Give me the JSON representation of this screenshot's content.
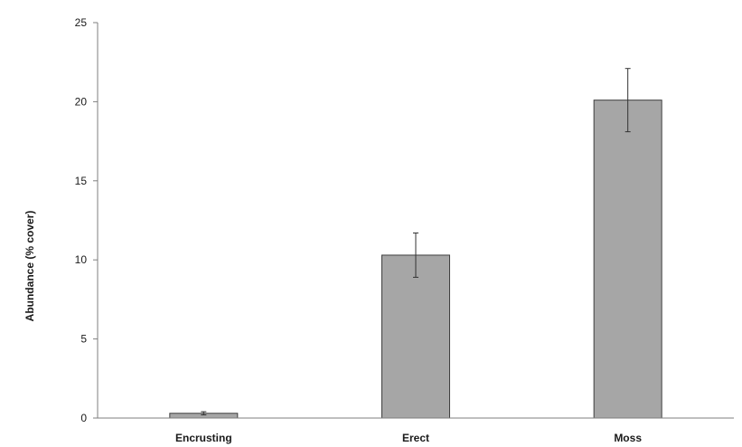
{
  "chart_data": {
    "type": "bar",
    "title": "",
    "xlabel": "",
    "ylabel": "Abundance (% cover)",
    "categories": [
      "Encrusting",
      "Erect",
      "Moss"
    ],
    "values": [
      0.3,
      10.3,
      20.1
    ],
    "error": [
      0.1,
      1.4,
      2.0
    ],
    "ylim": [
      0,
      25
    ],
    "yticks": [
      0,
      5,
      10,
      15,
      20,
      25
    ],
    "grid": false,
    "legend": "none",
    "bar_color": "#a6a6a6",
    "bar_edge_color": "#3f3f3f",
    "axis_color": "#7f7f7f"
  }
}
